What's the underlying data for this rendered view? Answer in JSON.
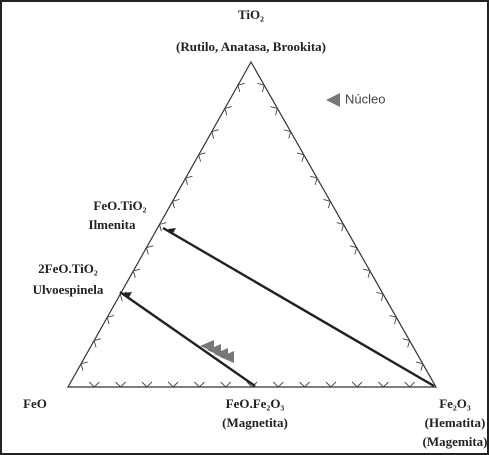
{
  "diagram": {
    "apex_top": {
      "formula": "TiO₂",
      "minerals": "(Rutilo, Anatasa, Brookita)"
    },
    "legend": {
      "label": "Núcleo"
    },
    "ilmenite": {
      "formula": "FeO.TiO₂",
      "name": "Ilmenita"
    },
    "ulvospinel": {
      "formula": "2FeO.TiO₂",
      "name": "Ulvoespinela"
    },
    "apex_left": {
      "formula": "FeO"
    },
    "magnetite": {
      "formula": "FeO.Fe₂O₃",
      "name": "(Magnetita)"
    },
    "apex_right": {
      "formula": "Fe₂O₃",
      "name1": "(Hematita)",
      "name2": "(Magemita)"
    }
  }
}
